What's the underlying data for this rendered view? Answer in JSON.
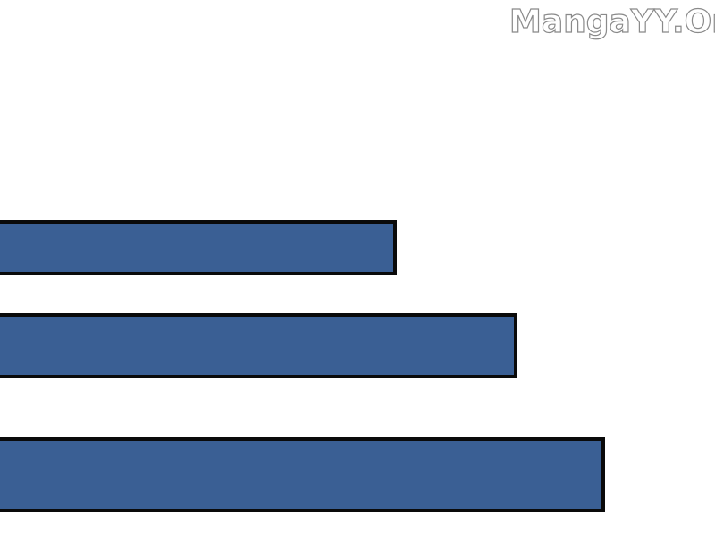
{
  "watermark": {
    "text": "MangaYY.Org"
  },
  "colors": {
    "bar_fill": "#3a5f94",
    "bar_outline": "#0a0a0a",
    "background": "#ffffff"
  },
  "bars": [
    {
      "label": ""
    },
    {
      "label": ""
    },
    {
      "label": ""
    }
  ]
}
